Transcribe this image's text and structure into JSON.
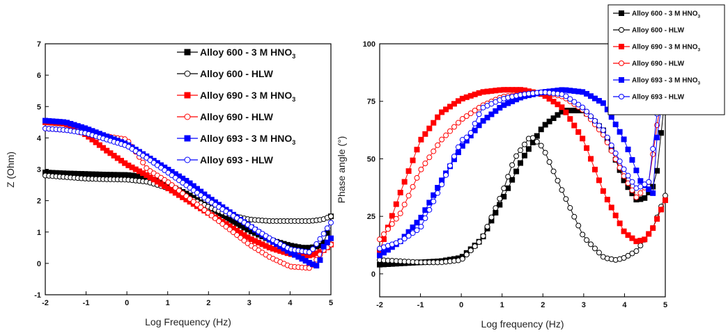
{
  "chart_data": [
    {
      "type": "scatter",
      "title": "",
      "xlabel": "Log Frequency (Hz)",
      "ylabel": "Z (Ohm)",
      "xlim": [
        -2,
        5
      ],
      "ylim": [
        -1,
        7
      ],
      "xticks": [
        "-2",
        "-1",
        "0",
        "1",
        "2",
        "3",
        "4",
        "5"
      ],
      "yticks": [
        "-1",
        "0",
        "1",
        "2",
        "3",
        "4",
        "5",
        "6",
        "7"
      ],
      "legend_position": "top-right",
      "series": [
        {
          "name": "Alloy 600 - 3 M HNO3",
          "legend_main": "Alloy 600 - 3 M HNO",
          "legend_sub": "3",
          "color": "#000000",
          "marker": "square",
          "fill": true,
          "x": [
            -2,
            -1.5,
            -1,
            -0.5,
            0,
            0.5,
            1,
            1.5,
            2,
            2.5,
            3,
            3.5,
            4,
            4.3,
            4.5,
            4.7,
            4.8,
            4.9,
            5
          ],
          "y": [
            2.9,
            2.87,
            2.85,
            2.83,
            2.82,
            2.75,
            2.5,
            2.2,
            1.8,
            1.4,
            1.05,
            0.75,
            0.57,
            0.5,
            0.5,
            0.55,
            0.6,
            0.9,
            1.5
          ]
        },
        {
          "name": "Alloy 600 - HLW",
          "color": "#000000",
          "marker": "circle",
          "fill": false,
          "x": [
            -2,
            -1.5,
            -1,
            -0.5,
            0,
            0.5,
            1,
            1.5,
            2,
            2.5,
            3,
            3.5,
            4,
            4.5,
            4.8,
            5
          ],
          "y": [
            2.8,
            2.75,
            2.7,
            2.68,
            2.67,
            2.6,
            2.4,
            2.1,
            1.8,
            1.55,
            1.4,
            1.35,
            1.35,
            1.35,
            1.4,
            1.5
          ]
        },
        {
          "name": "Alloy 690 - 3 M HNO3",
          "legend_main": "Alloy 690 - 3 M HNO",
          "legend_sub": "3",
          "color": "#ff0000",
          "marker": "square",
          "fill": true,
          "x": [
            -2,
            -1.5,
            -1,
            -0.5,
            0,
            0.5,
            1,
            1.5,
            2,
            2.5,
            3,
            3.5,
            4,
            4.5,
            4.8,
            5
          ],
          "y": [
            4.5,
            4.45,
            4.1,
            3.6,
            3.15,
            2.8,
            2.4,
            2.0,
            1.6,
            1.2,
            0.8,
            0.5,
            0.3,
            0.25,
            0.4,
            0.6
          ]
        },
        {
          "name": "Alloy 690 - HLW",
          "color": "#ff0000",
          "marker": "circle",
          "fill": false,
          "x": [
            -2,
            -1.5,
            -1,
            -0.5,
            0,
            0.3,
            0.5,
            1,
            1.5,
            2,
            2.5,
            3,
            3.5,
            4,
            4.5,
            4.8,
            5
          ],
          "y": [
            4.3,
            4.25,
            4.2,
            4.05,
            3.95,
            3.4,
            3.0,
            2.6,
            2.1,
            1.6,
            1.1,
            0.6,
            0.2,
            -0.1,
            -0.15,
            0.4,
            0.6
          ]
        },
        {
          "name": "Alloy 693 - 3 M HNO3",
          "legend_main": "Alloy 693 - 3 M HNO",
          "legend_sub": "3",
          "color": "#0000ff",
          "marker": "square",
          "fill": true,
          "x": [
            -2,
            -1.5,
            -1,
            -0.5,
            0,
            0.5,
            1,
            1.5,
            2,
            2.5,
            3,
            3.5,
            4,
            4.5,
            4.7,
            4.8,
            5
          ],
          "y": [
            4.55,
            4.5,
            4.3,
            4.05,
            3.8,
            3.4,
            3.0,
            2.6,
            2.1,
            1.65,
            1.2,
            0.75,
            0.35,
            0.0,
            -0.1,
            0.5,
            0.8
          ]
        },
        {
          "name": "Alloy 693 - HLW",
          "color": "#0000ff",
          "marker": "circle",
          "fill": false,
          "x": [
            -2,
            -1.5,
            -1,
            -0.5,
            0,
            0.5,
            1,
            1.5,
            2,
            2.5,
            3,
            3.5,
            4,
            4.5,
            4.8,
            5
          ],
          "y": [
            4.3,
            4.25,
            4.15,
            3.95,
            3.75,
            3.35,
            2.9,
            2.45,
            2.0,
            1.6,
            1.2,
            0.8,
            0.45,
            0.35,
            0.9,
            1.3
          ]
        }
      ]
    },
    {
      "type": "scatter",
      "title": "",
      "xlabel": "Log frequency (Hz)",
      "ylabel": "Phase angle (°)",
      "xlim": [
        -2,
        5
      ],
      "ylim": [
        -10,
        100
      ],
      "xticks": [
        "-2",
        "-1",
        "0",
        "1",
        "2",
        "3",
        "4",
        "5"
      ],
      "yticks": [
        "0",
        "25",
        "50",
        "75",
        "100"
      ],
      "legend_position": "top-right",
      "series": [
        {
          "name": "Alloy 600 - 3 M HNO3",
          "legend_main": "Alloy 600 - 3 M HNO",
          "legend_sub": "3",
          "color": "#000000",
          "marker": "square",
          "fill": true,
          "x": [
            -2,
            -1.5,
            -1,
            -0.5,
            0,
            0.5,
            1,
            1.5,
            2,
            2.5,
            3,
            3.5,
            4,
            4.3,
            4.5,
            4.7,
            4.8,
            5
          ],
          "y": [
            4,
            4.5,
            5,
            5.5,
            7,
            15,
            32,
            50,
            64,
            71,
            71,
            62,
            40,
            32,
            33,
            38,
            45,
            78
          ]
        },
        {
          "name": "Alloy 600 - HLW",
          "color": "#000000",
          "marker": "circle",
          "fill": false,
          "x": [
            -2,
            -1.5,
            -1,
            -0.5,
            0,
            0.5,
            1,
            1.3,
            1.7,
            2,
            2.5,
            3,
            3.5,
            3.8,
            4,
            4.3,
            4.7,
            5
          ],
          "y": [
            6,
            5.5,
            5,
            5,
            6,
            15,
            35,
            50,
            60,
            55,
            35,
            16,
            7,
            6,
            7,
            10,
            20,
            34
          ]
        },
        {
          "name": "Alloy 690 - 3 M HNO3",
          "legend_main": "Alloy 690 - 3 M HNO",
          "legend_sub": "3",
          "color": "#ff0000",
          "marker": "square",
          "fill": true,
          "x": [
            -2,
            -1.5,
            -1,
            -0.5,
            0,
            0.5,
            1,
            1.5,
            2,
            2.5,
            3,
            3.5,
            4,
            4.3,
            4.5,
            4.7,
            5
          ],
          "y": [
            10,
            35,
            58,
            70,
            76,
            79,
            80,
            80,
            78,
            72,
            58,
            35,
            18,
            14,
            15,
            20,
            32
          ]
        },
        {
          "name": "Alloy 690 - HLW",
          "color": "#ff0000",
          "marker": "circle",
          "fill": false,
          "x": [
            -2,
            -1.5,
            -1,
            -0.5,
            0,
            0.5,
            1,
            1.5,
            2,
            2.5,
            3,
            3.5,
            4,
            4.3,
            4.6,
            4.8,
            5
          ],
          "y": [
            15,
            26,
            45,
            58,
            67,
            73,
            77,
            78,
            79,
            77,
            71,
            60,
            42,
            33,
            40,
            65,
            85
          ]
        },
        {
          "name": "Alloy 693 - 3 M HNO3",
          "legend_main": "Alloy 693 - 3 M HNO",
          "legend_sub": "3",
          "color": "#0000ff",
          "marker": "square",
          "fill": true,
          "x": [
            -2,
            -1.5,
            -1,
            -0.5,
            0,
            0.5,
            1,
            1.5,
            2,
            2.5,
            3,
            3.5,
            4,
            4.4,
            4.7,
            4.8,
            5
          ],
          "y": [
            8,
            14,
            24,
            40,
            55,
            66,
            73,
            77,
            79,
            80,
            79,
            74,
            58,
            40,
            35,
            60,
            85
          ]
        },
        {
          "name": "Alloy 693 - HLW",
          "color": "#0000ff",
          "marker": "circle",
          "fill": false,
          "x": [
            -2,
            -1.5,
            -1,
            -0.5,
            0,
            0.2,
            0.5,
            1,
            1.5,
            2,
            2.5,
            3,
            3.5,
            4,
            4.3,
            4.6,
            4.8,
            5
          ],
          "y": [
            11,
            14,
            20,
            38,
            58,
            60,
            72,
            76,
            78,
            79,
            78,
            72,
            62,
            45,
            37,
            40,
            70,
            88
          ]
        }
      ]
    }
  ]
}
